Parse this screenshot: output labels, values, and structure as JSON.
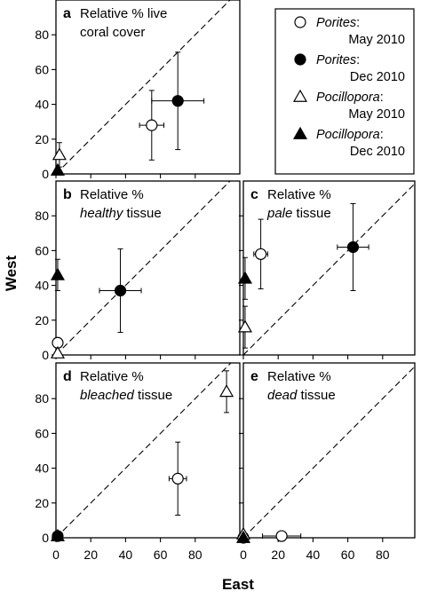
{
  "figure": {
    "xlabel": "East",
    "ylabel": "West"
  },
  "legend": {
    "entries": [
      {
        "italic": "Porites",
        "suffix": ":",
        "date": "May 2010",
        "marker": "circle-open"
      },
      {
        "italic": "Porites",
        "suffix": ":",
        "date": "Dec 2010",
        "marker": "circle-filled"
      },
      {
        "italic": "Pocillopora",
        "suffix": ":",
        "date": "May 2010",
        "marker": "triangle-open"
      },
      {
        "italic": "Pocillopora",
        "suffix": ":",
        "date": "Dec 2010",
        "marker": "triangle-filled"
      }
    ]
  },
  "chart_data": [
    {
      "type": "scatter",
      "panel": "a",
      "title_lines": [
        [
          {
            "text": "Relative % live",
            "italic": false
          }
        ],
        [
          {
            "text": "coral cover",
            "italic": false
          }
        ]
      ],
      "xlim": [
        0,
        100
      ],
      "ylim": [
        0,
        100
      ],
      "xticks": [
        0,
        20,
        40,
        60,
        80
      ],
      "yticks": [
        0,
        20,
        40,
        60,
        80
      ],
      "show_xtick_labels": false,
      "show_ytick_labels": true,
      "identity_line": true,
      "points": [
        {
          "series": "Porites: May 2010",
          "marker": "circle-open",
          "x": 55,
          "y": 28,
          "xerr": 7,
          "yerr": 20
        },
        {
          "series": "Porites: Dec 2010",
          "marker": "circle-filled",
          "x": 70,
          "y": 42,
          "xerr": 15,
          "yerr": 28
        },
        {
          "series": "Pocillopora: May 2010",
          "marker": "triangle-open",
          "x": 2,
          "y": 11,
          "xerr": 0,
          "yerr": 7
        },
        {
          "series": "Pocillopora: Dec 2010",
          "marker": "triangle-filled",
          "x": 1,
          "y": 2,
          "xerr": 0,
          "yerr": 0
        }
      ]
    },
    {
      "type": "scatter",
      "panel": "b",
      "title_lines": [
        [
          {
            "text": "Relative %",
            "italic": false
          }
        ],
        [
          {
            "text": "healthy",
            "italic": true
          },
          {
            "text": " tissue",
            "italic": false
          }
        ]
      ],
      "xlim": [
        0,
        100
      ],
      "ylim": [
        0,
        100
      ],
      "xticks": [
        0,
        20,
        40,
        60,
        80
      ],
      "yticks": [
        0,
        20,
        40,
        60,
        80
      ],
      "show_xtick_labels": false,
      "show_ytick_labels": true,
      "identity_line": true,
      "points": [
        {
          "series": "Porites: May 2010",
          "marker": "circle-open",
          "x": 1,
          "y": 7,
          "xerr": 0,
          "yerr": 0
        },
        {
          "series": "Porites: Dec 2010",
          "marker": "circle-filled",
          "x": 37,
          "y": 37,
          "xerr": 12,
          "yerr": 24
        },
        {
          "series": "Pocillopora: May 2010",
          "marker": "triangle-open",
          "x": 1,
          "y": 1,
          "xerr": 0,
          "yerr": 0
        },
        {
          "series": "Pocillopora: Dec 2010",
          "marker": "triangle-filled",
          "x": 1,
          "y": 46,
          "xerr": 0,
          "yerr": 9
        }
      ]
    },
    {
      "type": "scatter",
      "panel": "c",
      "title_lines": [
        [
          {
            "text": "Relative %",
            "italic": false
          }
        ],
        [
          {
            "text": "pale",
            "italic": true
          },
          {
            "text": " tissue",
            "italic": false
          }
        ]
      ],
      "xlim": [
        0,
        100
      ],
      "ylim": [
        0,
        100
      ],
      "xticks": [
        0,
        20,
        40,
        60,
        80
      ],
      "yticks": [
        0,
        20,
        40,
        60,
        80
      ],
      "show_xtick_labels": false,
      "show_ytick_labels": false,
      "identity_line": true,
      "points": [
        {
          "series": "Porites: May 2010",
          "marker": "circle-open",
          "x": 10,
          "y": 58,
          "xerr": 4,
          "yerr": 20
        },
        {
          "series": "Porites: Dec 2010",
          "marker": "circle-filled",
          "x": 63,
          "y": 62,
          "xerr": 9,
          "yerr": 25
        },
        {
          "series": "Pocillopora: May 2010",
          "marker": "triangle-open",
          "x": 1,
          "y": 16,
          "xerr": 0,
          "yerr": 12
        },
        {
          "series": "Pocillopora: Dec 2010",
          "marker": "triangle-filled",
          "x": 1,
          "y": 44,
          "xerr": 0,
          "yerr": 12
        }
      ]
    },
    {
      "type": "scatter",
      "panel": "d",
      "title_lines": [
        [
          {
            "text": "Relative %",
            "italic": false
          }
        ],
        [
          {
            "text": "bleached",
            "italic": true
          },
          {
            "text": " tissue",
            "italic": false
          }
        ]
      ],
      "xlim": [
        0,
        100
      ],
      "ylim": [
        0,
        100
      ],
      "xticks": [
        0,
        20,
        40,
        60,
        80
      ],
      "yticks": [
        0,
        20,
        40,
        60,
        80
      ],
      "show_xtick_labels": true,
      "show_ytick_labels": true,
      "identity_line": true,
      "points": [
        {
          "series": "Porites: May 2010",
          "marker": "circle-open",
          "x": 70,
          "y": 34,
          "xerr": 5,
          "yerr": 21
        },
        {
          "series": "Porites: Dec 2010",
          "marker": "circle-filled",
          "x": 1,
          "y": 1,
          "xerr": 0,
          "yerr": 0
        },
        {
          "series": "Pocillopora: May 2010",
          "marker": "triangle-open",
          "x": 98,
          "y": 84,
          "xerr": 0,
          "yerr": 12
        },
        {
          "series": "Pocillopora: Dec 2010",
          "marker": "triangle-filled",
          "x": 1,
          "y": 1,
          "xerr": 0,
          "yerr": 0
        }
      ]
    },
    {
      "type": "scatter",
      "panel": "e",
      "title_lines": [
        [
          {
            "text": "Relative %",
            "italic": false
          }
        ],
        [
          {
            "text": "dead",
            "italic": true
          },
          {
            "text": " tissue",
            "italic": false
          }
        ]
      ],
      "xlim": [
        0,
        100
      ],
      "ylim": [
        0,
        100
      ],
      "xticks": [
        0,
        20,
        40,
        60,
        80
      ],
      "yticks": [
        0,
        20,
        40,
        60,
        80
      ],
      "show_xtick_labels": true,
      "show_ytick_labels": false,
      "identity_line": true,
      "points": [
        {
          "series": "Porites: May 2010",
          "marker": "circle-open",
          "x": 22,
          "y": 1,
          "xerr": 11,
          "yerr": 0
        },
        {
          "series": "Porites: Dec 2010",
          "marker": "circle-filled",
          "x": 0,
          "y": 0,
          "xerr": 0,
          "yerr": 0
        },
        {
          "series": "Pocillopora: May 2010",
          "marker": "triangle-open",
          "x": 0,
          "y": 2,
          "xerr": 0,
          "yerr": 0
        },
        {
          "series": "Pocillopora: Dec 2010",
          "marker": "triangle-filled",
          "x": 0,
          "y": 0,
          "xerr": 0,
          "yerr": 0
        }
      ]
    }
  ]
}
